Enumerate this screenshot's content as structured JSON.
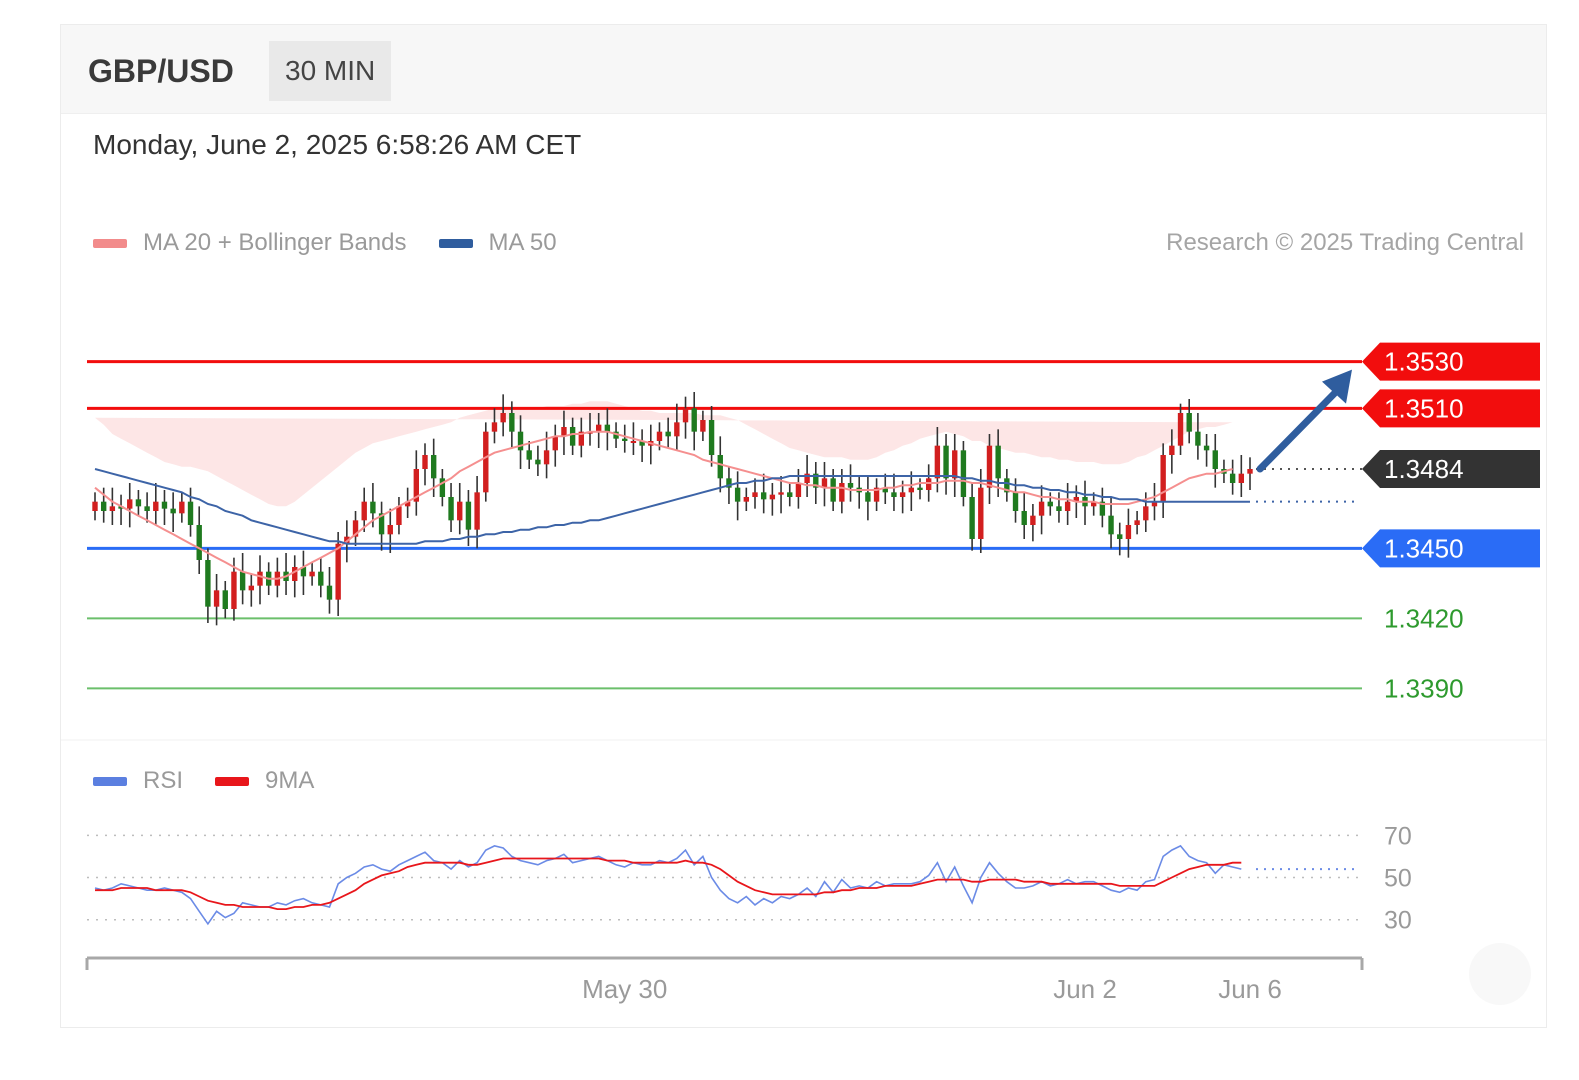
{
  "header": {
    "symbol": "GBP/USD",
    "timeframe": "30 MIN"
  },
  "datetime": "Monday, June 2, 2025 6:58:26 AM CET",
  "legend_main": [
    {
      "label": "MA 20 + Bollinger Bands",
      "color": "#f28b8b"
    },
    {
      "label": "MA 50",
      "color": "#2f5d9e"
    }
  ],
  "credit": "Research © 2025 Trading Central",
  "legend_rsi": [
    {
      "label": "RSI",
      "color": "#5b7fe0"
    },
    {
      "label": "9MA",
      "color": "#e8161b"
    }
  ],
  "colors": {
    "up": "#d21f1f",
    "down": "#1f7a1f",
    "resistance": "#f20d0d",
    "support": "#2a6cf6",
    "target": "#6bbf6b",
    "current": "#333333",
    "band": "#fde3e3",
    "ma20": "#f58f8f",
    "ma50": "#3d64a7",
    "arrow": "#2f5d9e",
    "rsi": "#6b8be6",
    "rsi_ma": "#e8161b"
  },
  "chart_data": [
    {
      "type": "candlestick",
      "title": "GBP/USD 30 MIN",
      "ylim": [
        1.337,
        1.3565
      ],
      "x_ticks": [
        {
          "label": "May 30",
          "index": 61
        },
        {
          "label": "Jun 2",
          "index": 114
        },
        {
          "label": "Jun 6",
          "index": 133
        }
      ],
      "levels": [
        {
          "value": 1.353,
          "label": "1.3530",
          "kind": "resistance"
        },
        {
          "value": 1.351,
          "label": "1.3510",
          "kind": "resistance"
        },
        {
          "value": 1.3484,
          "label": "1.3484",
          "kind": "current"
        },
        {
          "value": 1.345,
          "label": "1.3450",
          "kind": "support"
        },
        {
          "value": 1.342,
          "label": "1.3420",
          "kind": "target"
        },
        {
          "value": 1.339,
          "label": "1.3390",
          "kind": "target"
        }
      ],
      "closes": [
        1.347,
        1.3466,
        1.3468,
        1.3467,
        1.3471,
        1.3468,
        1.3466,
        1.347,
        1.3467,
        1.3465,
        1.347,
        1.346,
        1.3445,
        1.3425,
        1.3432,
        1.3424,
        1.344,
        1.3432,
        1.3434,
        1.344,
        1.3434,
        1.344,
        1.3436,
        1.3442,
        1.3438,
        1.344,
        1.3434,
        1.3428,
        1.3452,
        1.3455,
        1.3462,
        1.347,
        1.3465,
        1.3456,
        1.346,
        1.3468,
        1.347,
        1.3484,
        1.349,
        1.348,
        1.3472,
        1.3462,
        1.347,
        1.3458,
        1.3474,
        1.35,
        1.3504,
        1.3508,
        1.35,
        1.3492,
        1.3488,
        1.3486,
        1.3492,
        1.3498,
        1.3502,
        1.3494,
        1.35,
        1.35,
        1.3503,
        1.35,
        1.3497,
        1.3496,
        1.3496,
        1.3494,
        1.3496,
        1.35,
        1.3498,
        1.3504,
        1.351,
        1.35,
        1.3505,
        1.349,
        1.348,
        1.3476,
        1.347,
        1.3472,
        1.3474,
        1.3471,
        1.3473,
        1.3474,
        1.3472,
        1.3478,
        1.3482,
        1.3476,
        1.348,
        1.347,
        1.3478,
        1.3476,
        1.3474,
        1.347,
        1.3476,
        1.3474,
        1.3472,
        1.3474,
        1.3476,
        1.3475,
        1.348,
        1.3494,
        1.348,
        1.3492,
        1.3472,
        1.3454,
        1.3476,
        1.3494,
        1.348,
        1.3474,
        1.3466,
        1.346,
        1.3464,
        1.347,
        1.3468,
        1.3466,
        1.347,
        1.3472,
        1.3468,
        1.347,
        1.3464,
        1.3456,
        1.3454,
        1.346,
        1.3462,
        1.3468,
        1.347,
        1.349,
        1.3494,
        1.3508,
        1.35,
        1.3494,
        1.3492,
        1.3484,
        1.3482,
        1.3478,
        1.3482,
        1.3484
      ],
      "ma20": [
        1.3476,
        1.3473,
        1.347,
        1.3468,
        1.3466,
        1.3464,
        1.3462,
        1.346,
        1.3458,
        1.3456,
        1.3454,
        1.3452,
        1.345,
        1.3448,
        1.3446,
        1.3444,
        1.3442,
        1.344,
        1.3439,
        1.3438,
        1.3437,
        1.3437,
        1.3438,
        1.344,
        1.3442,
        1.3444,
        1.3446,
        1.3448,
        1.345,
        1.3453,
        1.3456,
        1.3459,
        1.3462,
        1.3464,
        1.3466,
        1.3468,
        1.347,
        1.3472,
        1.3474,
        1.3476,
        1.3478,
        1.348,
        1.3483,
        1.3485,
        1.3487,
        1.3489,
        1.3491,
        1.3492,
        1.3493,
        1.3494,
        1.3495,
        1.3496,
        1.3497,
        1.3498,
        1.3498,
        1.3499,
        1.3499,
        1.35,
        1.35,
        1.35,
        1.3499,
        1.3498,
        1.3497,
        1.3496,
        1.3495,
        1.3494,
        1.3493,
        1.3492,
        1.3491,
        1.349,
        1.3488,
        1.3487,
        1.3486,
        1.3485,
        1.3484,
        1.3483,
        1.3482,
        1.3481,
        1.348,
        1.3479,
        1.3478,
        1.3478,
        1.3477,
        1.3477,
        1.3476,
        1.3476,
        1.3476,
        1.3475,
        1.3475,
        1.3475,
        1.3475,
        1.3476,
        1.3476,
        1.3477,
        1.3477,
        1.3478,
        1.3478,
        1.3478,
        1.3479,
        1.3479,
        1.3479,
        1.3478,
        1.3478,
        1.3477,
        1.3476,
        1.3475,
        1.3474,
        1.3474,
        1.3473,
        1.3472,
        1.3472,
        1.3471,
        1.3471,
        1.347,
        1.347,
        1.347,
        1.3469,
        1.3469,
        1.3469,
        1.3469,
        1.347,
        1.3471,
        1.3472,
        1.3474,
        1.3476,
        1.3478,
        1.348,
        1.3481,
        1.3482,
        1.3482,
        1.3483,
        1.3484
      ],
      "ma50": [
        1.3484,
        1.3483,
        1.3482,
        1.3481,
        1.348,
        1.3479,
        1.3478,
        1.3477,
        1.3476,
        1.3475,
        1.3474,
        1.3472,
        1.3471,
        1.3469,
        1.3468,
        1.3466,
        1.3465,
        1.3464,
        1.3462,
        1.3461,
        1.346,
        1.3459,
        1.3458,
        1.3457,
        1.3456,
        1.3455,
        1.3454,
        1.3453,
        1.3453,
        1.3452,
        1.3452,
        1.3452,
        1.3452,
        1.3452,
        1.3452,
        1.3452,
        1.3452,
        1.3452,
        1.3453,
        1.3453,
        1.3453,
        1.3454,
        1.3454,
        1.3455,
        1.3455,
        1.3456,
        1.3456,
        1.3457,
        1.3457,
        1.3458,
        1.3458,
        1.3459,
        1.3459,
        1.346,
        1.346,
        1.3461,
        1.3461,
        1.3462,
        1.3462,
        1.3463,
        1.3464,
        1.3465,
        1.3466,
        1.3467,
        1.3468,
        1.3469,
        1.347,
        1.3471,
        1.3472,
        1.3473,
        1.3474,
        1.3475,
        1.3476,
        1.3477,
        1.3478,
        1.3478,
        1.3479,
        1.3479,
        1.348,
        1.348,
        1.3481,
        1.3481,
        1.3481,
        1.3481,
        1.3481,
        1.3481,
        1.3481,
        1.3481,
        1.3481,
        1.3481,
        1.3481,
        1.3481,
        1.3481,
        1.3481,
        1.3481,
        1.3481,
        1.3481,
        1.3481,
        1.3481,
        1.3481,
        1.348,
        1.348,
        1.3479,
        1.3479,
        1.3478,
        1.3478,
        1.3477,
        1.3477,
        1.3476,
        1.3476,
        1.3475,
        1.3475,
        1.3474,
        1.3474,
        1.3473,
        1.3473,
        1.3472,
        1.3472,
        1.3471,
        1.3471,
        1.3471,
        1.347,
        1.347,
        1.347,
        1.347,
        1.347,
        1.347,
        1.347,
        1.347,
        1.347,
        1.347,
        1.347,
        1.347,
        1.347
      ],
      "band_width": [
        0.003,
        0.003,
        0.0029,
        0.0029,
        0.0029,
        0.0029,
        0.0029,
        0.0029,
        0.0029,
        0.003,
        0.0031,
        0.0033,
        0.0034,
        0.0035,
        0.0035,
        0.0035,
        0.0035,
        0.0035,
        0.0034,
        0.0033,
        0.0032,
        0.0031,
        0.003,
        0.003,
        0.0031,
        0.0032,
        0.0033,
        0.0034,
        0.0035,
        0.0035,
        0.0035,
        0.0034,
        0.0033,
        0.0032,
        0.0031,
        0.003,
        0.0029,
        0.0028,
        0.0027,
        0.0026,
        0.0025,
        0.0024,
        0.0023,
        0.0022,
        0.0021,
        0.002,
        0.0019,
        0.0018,
        0.0017,
        0.0016,
        0.0015,
        0.0014,
        0.0014,
        0.0013,
        0.0013,
        0.0013,
        0.0013,
        0.0013,
        0.0013,
        0.0013,
        0.0013,
        0.0013,
        0.0013,
        0.0013,
        0.0014,
        0.0014,
        0.0015,
        0.0016,
        0.0017,
        0.0018,
        0.0019,
        0.002,
        0.0021,
        0.0021,
        0.0021,
        0.002,
        0.0019,
        0.0018,
        0.0017,
        0.0016,
        0.0015,
        0.0014,
        0.0014,
        0.0013,
        0.0013,
        0.0013,
        0.0013,
        0.0013,
        0.0013,
        0.0013,
        0.0014,
        0.0015,
        0.0016,
        0.0017,
        0.0018,
        0.0019,
        0.002,
        0.0021,
        0.0021,
        0.002,
        0.0019,
        0.0018,
        0.0018,
        0.0017,
        0.0017,
        0.0017,
        0.0017,
        0.0017,
        0.0017,
        0.0017,
        0.0017,
        0.0017,
        0.0017,
        0.0017,
        0.0017,
        0.0017,
        0.0017,
        0.0017,
        0.0017,
        0.0018,
        0.0019,
        0.0019,
        0.002,
        0.002,
        0.002,
        0.002,
        0.002,
        0.002,
        0.002,
        0.002,
        0.002,
        0.002,
        0.002,
        0.002
      ],
      "forecast": {
        "from": 1.3484,
        "to": 1.353
      }
    },
    {
      "type": "line",
      "title": "RSI",
      "ylim": [
        18,
        82
      ],
      "y_ticks": [
        70,
        50,
        30
      ],
      "rsi": [
        45,
        44,
        45,
        47,
        46,
        45,
        44,
        44,
        45,
        44,
        43,
        40,
        34,
        28,
        34,
        31,
        33,
        38,
        37,
        36,
        36,
        38,
        37,
        39,
        40,
        38,
        37,
        36,
        47,
        50,
        52,
        55,
        56,
        54,
        53,
        56,
        58,
        60,
        62,
        58,
        57,
        54,
        58,
        55,
        57,
        63,
        65,
        64,
        60,
        58,
        57,
        56,
        58,
        59,
        61,
        57,
        58,
        59,
        60,
        58,
        56,
        55,
        57,
        56,
        56,
        58,
        57,
        59,
        63,
        56,
        60,
        50,
        44,
        40,
        38,
        41,
        37,
        40,
        38,
        41,
        40,
        42,
        45,
        41,
        48,
        43,
        49,
        45,
        46,
        45,
        48,
        46,
        47,
        47,
        47,
        48,
        51,
        57,
        48,
        55,
        46,
        38,
        50,
        57,
        52,
        48,
        45,
        45,
        46,
        48,
        46,
        47,
        49,
        47,
        48,
        48,
        46,
        44,
        43,
        45,
        44,
        48,
        49,
        60,
        63,
        65,
        60,
        58,
        57,
        52,
        56,
        55,
        54
      ],
      "rsi_ma": [
        44,
        44,
        44,
        45,
        45,
        45,
        45,
        44,
        44,
        44,
        44,
        43,
        41,
        39,
        38,
        37,
        37,
        36,
        36,
        36,
        36,
        35,
        35,
        36,
        36,
        37,
        37,
        38,
        40,
        42,
        44,
        47,
        49,
        51,
        52,
        53,
        55,
        56,
        57,
        57,
        57,
        57,
        57,
        56,
        56,
        57,
        58,
        59,
        59,
        59,
        59,
        59,
        59,
        59,
        59,
        59,
        59,
        59,
        59,
        58,
        58,
        58,
        57,
        57,
        57,
        57,
        57,
        57,
        58,
        57,
        57,
        56,
        54,
        51,
        48,
        46,
        44,
        43,
        42,
        42,
        42,
        42,
        42,
        42,
        43,
        43,
        44,
        44,
        45,
        45,
        45,
        46,
        46,
        46,
        46,
        47,
        48,
        49,
        49,
        49,
        49,
        48,
        48,
        49,
        49,
        49,
        49,
        48,
        48,
        48,
        47,
        47,
        47,
        47,
        47,
        47,
        47,
        47,
        46,
        46,
        46,
        46,
        46,
        48,
        50,
        52,
        54,
        55,
        56,
        56,
        56,
        57,
        57
      ]
    }
  ]
}
